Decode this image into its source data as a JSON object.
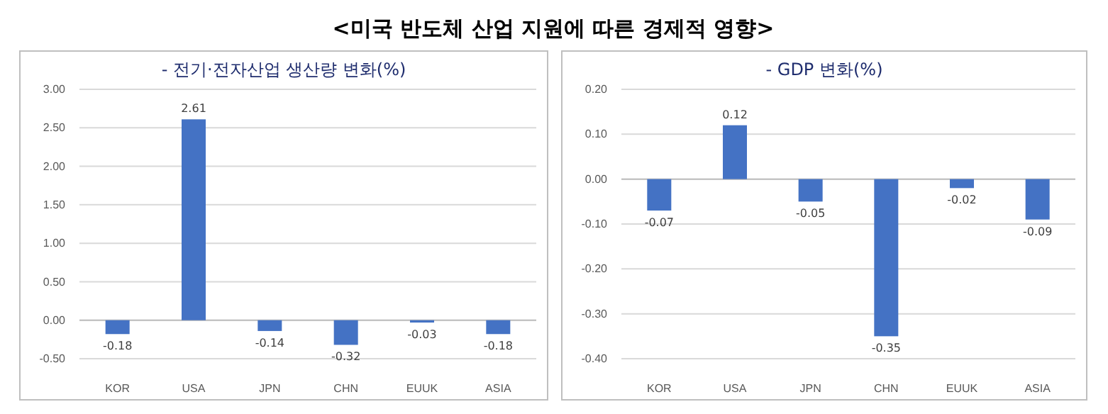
{
  "chart_data": [
    {
      "type": "bar",
      "title": "<미국 반도체 산업 지원에 따른 경제적 영향>",
      "subtitle": "- 전기·전자산업 생산량 변화(%)",
      "categories": [
        "KOR",
        "USA",
        "JPN",
        "CHN",
        "EUUK",
        "ASIA"
      ],
      "values": [
        -0.18,
        2.61,
        -0.14,
        -0.32,
        -0.03,
        -0.18
      ],
      "color": "#4472c4",
      "value_labels": [
        "-0.18",
        "2.61",
        "-0.14",
        "-0.32",
        "-0.03",
        "-0.18"
      ],
      "ylim": [
        -0.5,
        3.0
      ],
      "yticks": [
        {
          "value": -0.5,
          "label": "-0.50"
        },
        {
          "value": 0,
          "label": "0.00"
        },
        {
          "value": 0.5,
          "label": "0.50"
        },
        {
          "value": 1,
          "label": "1.00"
        },
        {
          "value": 1.5,
          "label": "1.50"
        },
        {
          "value": 2,
          "label": "2.00"
        },
        {
          "value": 2.5,
          "label": "2.50"
        },
        {
          "value": 3,
          "label": "3.00"
        }
      ],
      "grid": "y"
    },
    {
      "type": "bar",
      "subtitle": "- GDP 변화(%)",
      "categories": [
        "KOR",
        "USA",
        "JPN",
        "CHN",
        "EUUK",
        "ASIA"
      ],
      "values": [
        -0.07,
        0.12,
        -0.05,
        -0.35,
        -0.02,
        -0.09
      ],
      "color": "#4472c4",
      "value_labels": [
        "-0.07",
        "0.12",
        "-0.05",
        "-0.35",
        "-0.02",
        "-0.09"
      ],
      "ylim": [
        -0.4,
        0.2
      ],
      "yticks": [
        {
          "value": -0.4,
          "label": "-0.40"
        },
        {
          "value": -0.3,
          "label": "-0.30"
        },
        {
          "value": -0.2,
          "label": "-0.20"
        },
        {
          "value": -0.1,
          "label": "-0.10"
        },
        {
          "value": 0,
          "label": "0.00"
        },
        {
          "value": 0.1,
          "label": "0.10"
        },
        {
          "value": 0.2,
          "label": "0.20"
        }
      ],
      "grid": "y"
    }
  ]
}
